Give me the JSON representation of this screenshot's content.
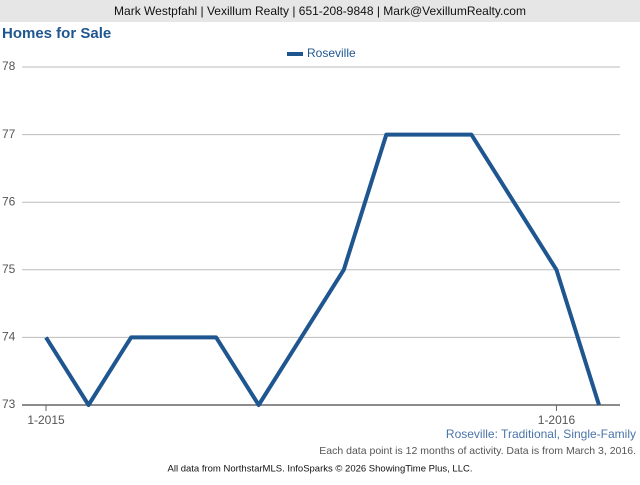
{
  "header": {
    "text": "Mark Westpfahl | Vexillum Realty | 651-208-9848 | Mark@VexillumRealty.com"
  },
  "chart_data": {
    "type": "line",
    "title": "Homes for Sale",
    "categories": [
      "1-2015",
      null,
      null,
      null,
      null,
      null,
      null,
      null,
      null,
      null,
      null,
      null,
      "1-2016",
      null
    ],
    "series": [
      {
        "name": "Roseville",
        "color": "#1f5690",
        "values": [
          74,
          73,
          74,
          74,
          74,
          73,
          74,
          75,
          77,
          77,
          77,
          76,
          75,
          73
        ]
      }
    ],
    "ylim": [
      73,
      78
    ],
    "yticks": [
      73,
      74,
      75,
      76,
      77,
      78
    ],
    "grid": true,
    "legend": "top"
  },
  "footer": {
    "subtitle": "Roseville: Traditional, Single-Family",
    "note": "Each data point is 12 months of activity. Data is from March 3, 2016.",
    "credit": "All data from NorthstarMLS. InfoSparks © 2026 ShowingTime Plus, LLC."
  }
}
